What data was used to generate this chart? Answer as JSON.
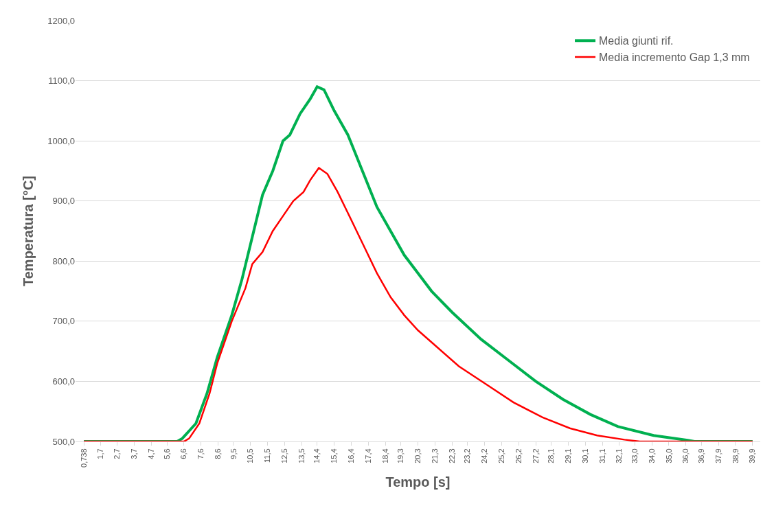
{
  "chart_data": {
    "type": "line",
    "xlabel": "Tempo [s]",
    "ylabel": "Temperatura [°C]",
    "xlim": [
      0.25,
      40.35
    ],
    "ylim": [
      500,
      1200
    ],
    "xticks": [
      {
        "value": 0.738,
        "label": "0,738"
      },
      {
        "value": 1.7,
        "label": "1,7"
      },
      {
        "value": 2.7,
        "label": "2,7"
      },
      {
        "value": 3.7,
        "label": "3,7"
      },
      {
        "value": 4.7,
        "label": "4,7"
      },
      {
        "value": 5.6,
        "label": "5,6"
      },
      {
        "value": 6.6,
        "label": "6,6"
      },
      {
        "value": 7.6,
        "label": "7,6"
      },
      {
        "value": 8.6,
        "label": "8,6"
      },
      {
        "value": 9.5,
        "label": "9,5"
      },
      {
        "value": 10.5,
        "label": "10,5"
      },
      {
        "value": 11.5,
        "label": "11,5"
      },
      {
        "value": 12.5,
        "label": "12,5"
      },
      {
        "value": 13.5,
        "label": "13,5"
      },
      {
        "value": 14.4,
        "label": "14,4"
      },
      {
        "value": 15.4,
        "label": "15,4"
      },
      {
        "value": 16.4,
        "label": "16,4"
      },
      {
        "value": 17.4,
        "label": "17,4"
      },
      {
        "value": 18.4,
        "label": "18,4"
      },
      {
        "value": 19.3,
        "label": "19,3"
      },
      {
        "value": 20.3,
        "label": "20,3"
      },
      {
        "value": 21.3,
        "label": "21,3"
      },
      {
        "value": 22.3,
        "label": "22,3"
      },
      {
        "value": 23.2,
        "label": "23,2"
      },
      {
        "value": 24.2,
        "label": "24,2"
      },
      {
        "value": 25.2,
        "label": "25,2"
      },
      {
        "value": 26.2,
        "label": "26,2"
      },
      {
        "value": 27.2,
        "label": "27,2"
      },
      {
        "value": 28.1,
        "label": "28,1"
      },
      {
        "value": 29.1,
        "label": "29,1"
      },
      {
        "value": 30.1,
        "label": "30,1"
      },
      {
        "value": 31.1,
        "label": "31,1"
      },
      {
        "value": 32.1,
        "label": "32,1"
      },
      {
        "value": 33.0,
        "label": "33,0"
      },
      {
        "value": 34.0,
        "label": "34,0"
      },
      {
        "value": 35.0,
        "label": "35,0"
      },
      {
        "value": 36.0,
        "label": "36,0"
      },
      {
        "value": 36.9,
        "label": "36,9"
      },
      {
        "value": 37.9,
        "label": "37,9"
      },
      {
        "value": 38.9,
        "label": "38,9"
      },
      {
        "value": 39.9,
        "label": "39,9"
      }
    ],
    "yticks": [
      {
        "value": 500,
        "label": "500,0"
      },
      {
        "value": 600,
        "label": "600,0"
      },
      {
        "value": 700,
        "label": "700,0"
      },
      {
        "value": 800,
        "label": "800,0"
      },
      {
        "value": 900,
        "label": "900,0"
      },
      {
        "value": 1000,
        "label": "1000,0"
      },
      {
        "value": 1100,
        "label": "1100,0"
      },
      {
        "value": 1200,
        "label": "1200,0"
      }
    ],
    "grid": "y",
    "legend": "top right",
    "marker": "none",
    "line_style": "solid",
    "series": [
      {
        "name": "Media giunti rif.",
        "color": "#00b050",
        "x": [
          0.738,
          6.2,
          6.5,
          7.3,
          7.95,
          8.55,
          9.4,
          10.0,
          10.6,
          11.2,
          11.8,
          12.4,
          12.8,
          13.4,
          14.0,
          14.4,
          14.8,
          15.4,
          16.2,
          17.05,
          17.9,
          18.7,
          19.5,
          20.3,
          21.1,
          22.3,
          24.0,
          25.6,
          27.2,
          28.8,
          30.4,
          32.0,
          34.1,
          36.1,
          36.5,
          39.9
        ],
        "values": [
          500,
          500,
          505,
          530,
          580,
          640,
          710,
          770,
          840,
          910,
          950,
          1000,
          1010,
          1045,
          1070,
          1090,
          1085,
          1050,
          1010,
          950,
          890,
          850,
          810,
          780,
          750,
          715,
          670,
          635,
          600,
          570,
          545,
          525,
          510,
          502,
          500,
          500
        ]
      },
      {
        "name": "Media incremento Gap 1,3 mm",
        "color": "#ff0000",
        "x": [
          0.738,
          6.6,
          6.9,
          7.5,
          8.1,
          8.55,
          9.4,
          10.2,
          10.6,
          11.2,
          11.8,
          12.4,
          13.0,
          13.6,
          14.0,
          14.5,
          15.0,
          15.6,
          16.2,
          17.05,
          17.9,
          18.7,
          19.5,
          20.3,
          21.5,
          22.7,
          24.3,
          25.9,
          27.6,
          29.2,
          30.8,
          32.4,
          33.3,
          39.9
        ],
        "values": [
          500,
          500,
          505,
          530,
          580,
          630,
          700,
          755,
          795,
          815,
          850,
          875,
          900,
          915,
          935,
          955,
          945,
          915,
          880,
          830,
          780,
          740,
          710,
          685,
          655,
          625,
          595,
          565,
          540,
          522,
          510,
          503,
          500,
          500
        ]
      }
    ]
  }
}
